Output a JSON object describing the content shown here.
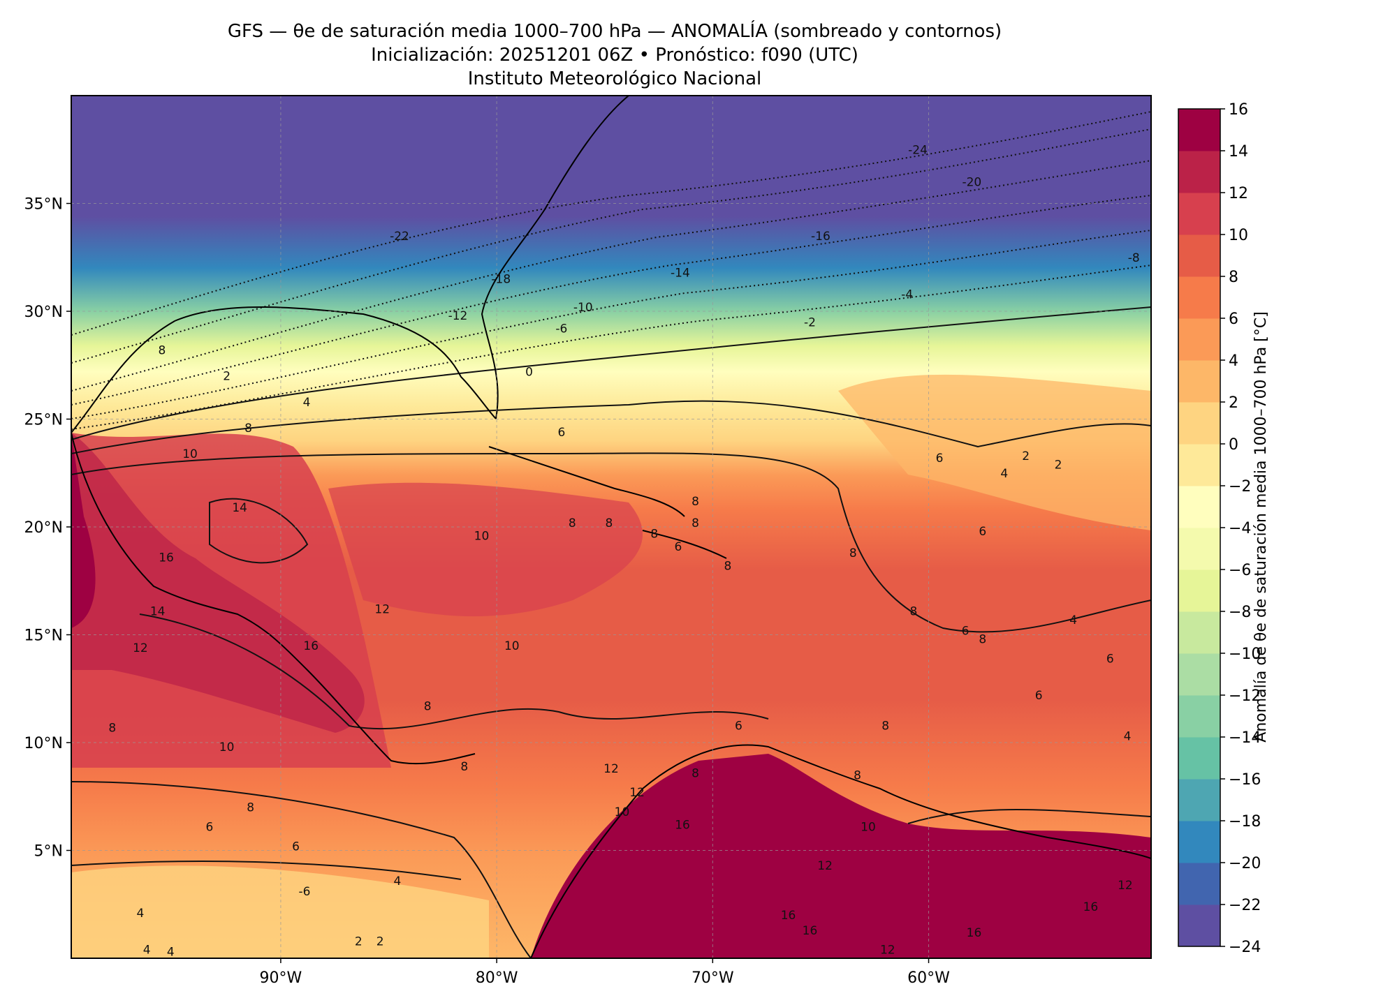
{
  "header": {
    "title_line1": "GFS — θe de saturación media 1000–700 hPa — ANOMALÍA (sombreado y contornos)",
    "title_line2": "Inicialización: 20251201 06Z   •   Pronóstico: f090 (UTC)",
    "title_line3": "Instituto Meteorológico Nacional"
  },
  "map": {
    "lat_ticks": [
      {
        "value": 35,
        "label": "35°N"
      },
      {
        "value": 30,
        "label": "30°N"
      },
      {
        "value": 25,
        "label": "25°N"
      },
      {
        "value": 20,
        "label": "20°N"
      },
      {
        "value": 15,
        "label": "15°N"
      },
      {
        "value": 10,
        "label": "10°N"
      },
      {
        "value": 5,
        "label": "5°N"
      }
    ],
    "lon_ticks": [
      {
        "value": -90,
        "label": "90°W"
      },
      {
        "value": -80,
        "label": "80°W"
      },
      {
        "value": -70,
        "label": "70°W"
      },
      {
        "value": -60,
        "label": "60°W"
      }
    ],
    "extent": {
      "lon_min": -99.7,
      "lon_max": -49.7,
      "lat_min": 0,
      "lat_max": 40
    },
    "grid": true,
    "contour_labels": [
      {
        "text": "-24",
        "lon": -60.5,
        "lat": 37.5
      },
      {
        "text": "-20",
        "lon": -58,
        "lat": 36
      },
      {
        "text": "-22",
        "lon": -84.5,
        "lat": 33.5
      },
      {
        "text": "-16",
        "lon": -65,
        "lat": 33.5
      },
      {
        "text": "-18",
        "lon": -79.8,
        "lat": 31.5
      },
      {
        "text": "-14",
        "lon": -71.5,
        "lat": 31.8
      },
      {
        "text": "-4",
        "lon": -61,
        "lat": 30.8
      },
      {
        "text": "-8",
        "lon": -50.5,
        "lat": 32.5
      },
      {
        "text": "-10",
        "lon": -76,
        "lat": 30.2
      },
      {
        "text": "-12",
        "lon": -81.8,
        "lat": 29.8
      },
      {
        "text": "-6",
        "lon": -77,
        "lat": 29.2
      },
      {
        "text": "-2",
        "lon": -65.5,
        "lat": 29.5
      },
      {
        "text": "8",
        "lon": -95.5,
        "lat": 28.2
      },
      {
        "text": "2",
        "lon": -92.5,
        "lat": 27.0
      },
      {
        "text": "0",
        "lon": -78.5,
        "lat": 27.2
      },
      {
        "text": "4",
        "lon": -88.8,
        "lat": 25.8
      },
      {
        "text": "8",
        "lon": -91.5,
        "lat": 24.6
      },
      {
        "text": "6",
        "lon": -77.0,
        "lat": 24.4
      },
      {
        "text": "10",
        "lon": -94.2,
        "lat": 23.4
      },
      {
        "text": "6",
        "lon": -59.5,
        "lat": 23.2
      },
      {
        "text": "2",
        "lon": -55.5,
        "lat": 23.3
      },
      {
        "text": "2",
        "lon": -54.0,
        "lat": 22.9
      },
      {
        "text": "4",
        "lon": -56.5,
        "lat": 22.5
      },
      {
        "text": "8",
        "lon": -70.8,
        "lat": 21.2
      },
      {
        "text": "14",
        "lon": -91.9,
        "lat": 20.9
      },
      {
        "text": "8",
        "lon": -76.5,
        "lat": 20.2
      },
      {
        "text": "8",
        "lon": -74.8,
        "lat": 20.2
      },
      {
        "text": "8",
        "lon": -70.8,
        "lat": 20.2
      },
      {
        "text": "6",
        "lon": -57.5,
        "lat": 19.8
      },
      {
        "text": "10",
        "lon": -80.7,
        "lat": 19.6
      },
      {
        "text": "8",
        "lon": -72.7,
        "lat": 19.7
      },
      {
        "text": "6",
        "lon": -71.6,
        "lat": 19.1
      },
      {
        "text": "16",
        "lon": -95.3,
        "lat": 18.6
      },
      {
        "text": "8",
        "lon": -63.5,
        "lat": 18.8
      },
      {
        "text": "8",
        "lon": -69.3,
        "lat": 18.2
      },
      {
        "text": "12",
        "lon": -85.3,
        "lat": 16.2
      },
      {
        "text": "14",
        "lon": -95.7,
        "lat": 16.1
      },
      {
        "text": "8",
        "lon": -60.7,
        "lat": 16.1
      },
      {
        "text": "4",
        "lon": -53.3,
        "lat": 15.7
      },
      {
        "text": "6",
        "lon": -58.3,
        "lat": 15.2
      },
      {
        "text": "8",
        "lon": -57.5,
        "lat": 14.8
      },
      {
        "text": "12",
        "lon": -96.5,
        "lat": 14.4
      },
      {
        "text": "16",
        "lon": -88.6,
        "lat": 14.5
      },
      {
        "text": "10",
        "lon": -79.3,
        "lat": 14.5
      },
      {
        "text": "6",
        "lon": -51.6,
        "lat": 13.9
      },
      {
        "text": "8",
        "lon": -83.2,
        "lat": 11.7
      },
      {
        "text": "6",
        "lon": -54.9,
        "lat": 12.2
      },
      {
        "text": "8",
        "lon": -97.8,
        "lat": 10.7
      },
      {
        "text": "6",
        "lon": -68.8,
        "lat": 10.8
      },
      {
        "text": "8",
        "lon": -62.0,
        "lat": 10.8
      },
      {
        "text": "4",
        "lon": -50.8,
        "lat": 10.3
      },
      {
        "text": "10",
        "lon": -92.5,
        "lat": 9.8
      },
      {
        "text": "8",
        "lon": -81.5,
        "lat": 8.9
      },
      {
        "text": "12",
        "lon": -74.7,
        "lat": 8.8
      },
      {
        "text": "8",
        "lon": -70.8,
        "lat": 8.6
      },
      {
        "text": "8",
        "lon": -63.3,
        "lat": 8.5
      },
      {
        "text": "12",
        "lon": -73.5,
        "lat": 7.7
      },
      {
        "text": "8",
        "lon": -91.4,
        "lat": 7.0
      },
      {
        "text": "10",
        "lon": -74.2,
        "lat": 6.8
      },
      {
        "text": "16",
        "lon": -71.4,
        "lat": 6.2
      },
      {
        "text": "6",
        "lon": -93.3,
        "lat": 6.1
      },
      {
        "text": "10",
        "lon": -62.8,
        "lat": 6.1
      },
      {
        "text": "6",
        "lon": -89.3,
        "lat": 5.2
      },
      {
        "text": "4",
        "lon": -84.6,
        "lat": 3.6
      },
      {
        "text": "12",
        "lon": -64.8,
        "lat": 4.3
      },
      {
        "text": "-6",
        "lon": -88.9,
        "lat": 3.1
      },
      {
        "text": "12",
        "lon": -50.9,
        "lat": 3.4
      },
      {
        "text": "4",
        "lon": -96.5,
        "lat": 2.1
      },
      {
        "text": "16",
        "lon": -52.5,
        "lat": 2.4
      },
      {
        "text": "16",
        "lon": -66.5,
        "lat": 2.0
      },
      {
        "text": "16",
        "lon": -65.5,
        "lat": 1.3
      },
      {
        "text": "16",
        "lon": -57.9,
        "lat": 1.2
      },
      {
        "text": "2",
        "lon": -86.4,
        "lat": 0.8
      },
      {
        "text": "2",
        "lon": -85.4,
        "lat": 0.8
      },
      {
        "text": "4",
        "lon": -96.2,
        "lat": 0.4
      },
      {
        "text": "4",
        "lon": -95.1,
        "lat": 0.3
      },
      {
        "text": "12",
        "lon": -61.9,
        "lat": 0.4
      }
    ]
  },
  "colorbar": {
    "label": "Anomalía de θe de saturación media 1000–700 hPa [°C]",
    "levels": [
      -24,
      -22,
      -20,
      -18,
      -16,
      -14,
      -12,
      -10,
      -8,
      -6,
      -4,
      -2,
      0,
      2,
      4,
      6,
      8,
      10,
      12,
      14,
      16
    ],
    "tick_labels": [
      "16",
      "14",
      "12",
      "10",
      "8",
      "6",
      "4",
      "2",
      "0",
      "−2",
      "−4",
      "−6",
      "−8",
      "−10",
      "−12",
      "−14",
      "−16",
      "−18",
      "−20",
      "−22",
      "−24"
    ],
    "colors": [
      "#5e4fa2",
      "#4165af",
      "#3288bd",
      "#4ea6b2",
      "#66c2a5",
      "#89d0a4",
      "#abdda4",
      "#c8e99e",
      "#e6f598",
      "#f4faad",
      "#fffebe",
      "#fee999",
      "#fed481",
      "#fdb768",
      "#fb9a57",
      "#f67b4a",
      "#e65c47",
      "#d7404e",
      "#bb2248",
      "#9e0142"
    ]
  }
}
